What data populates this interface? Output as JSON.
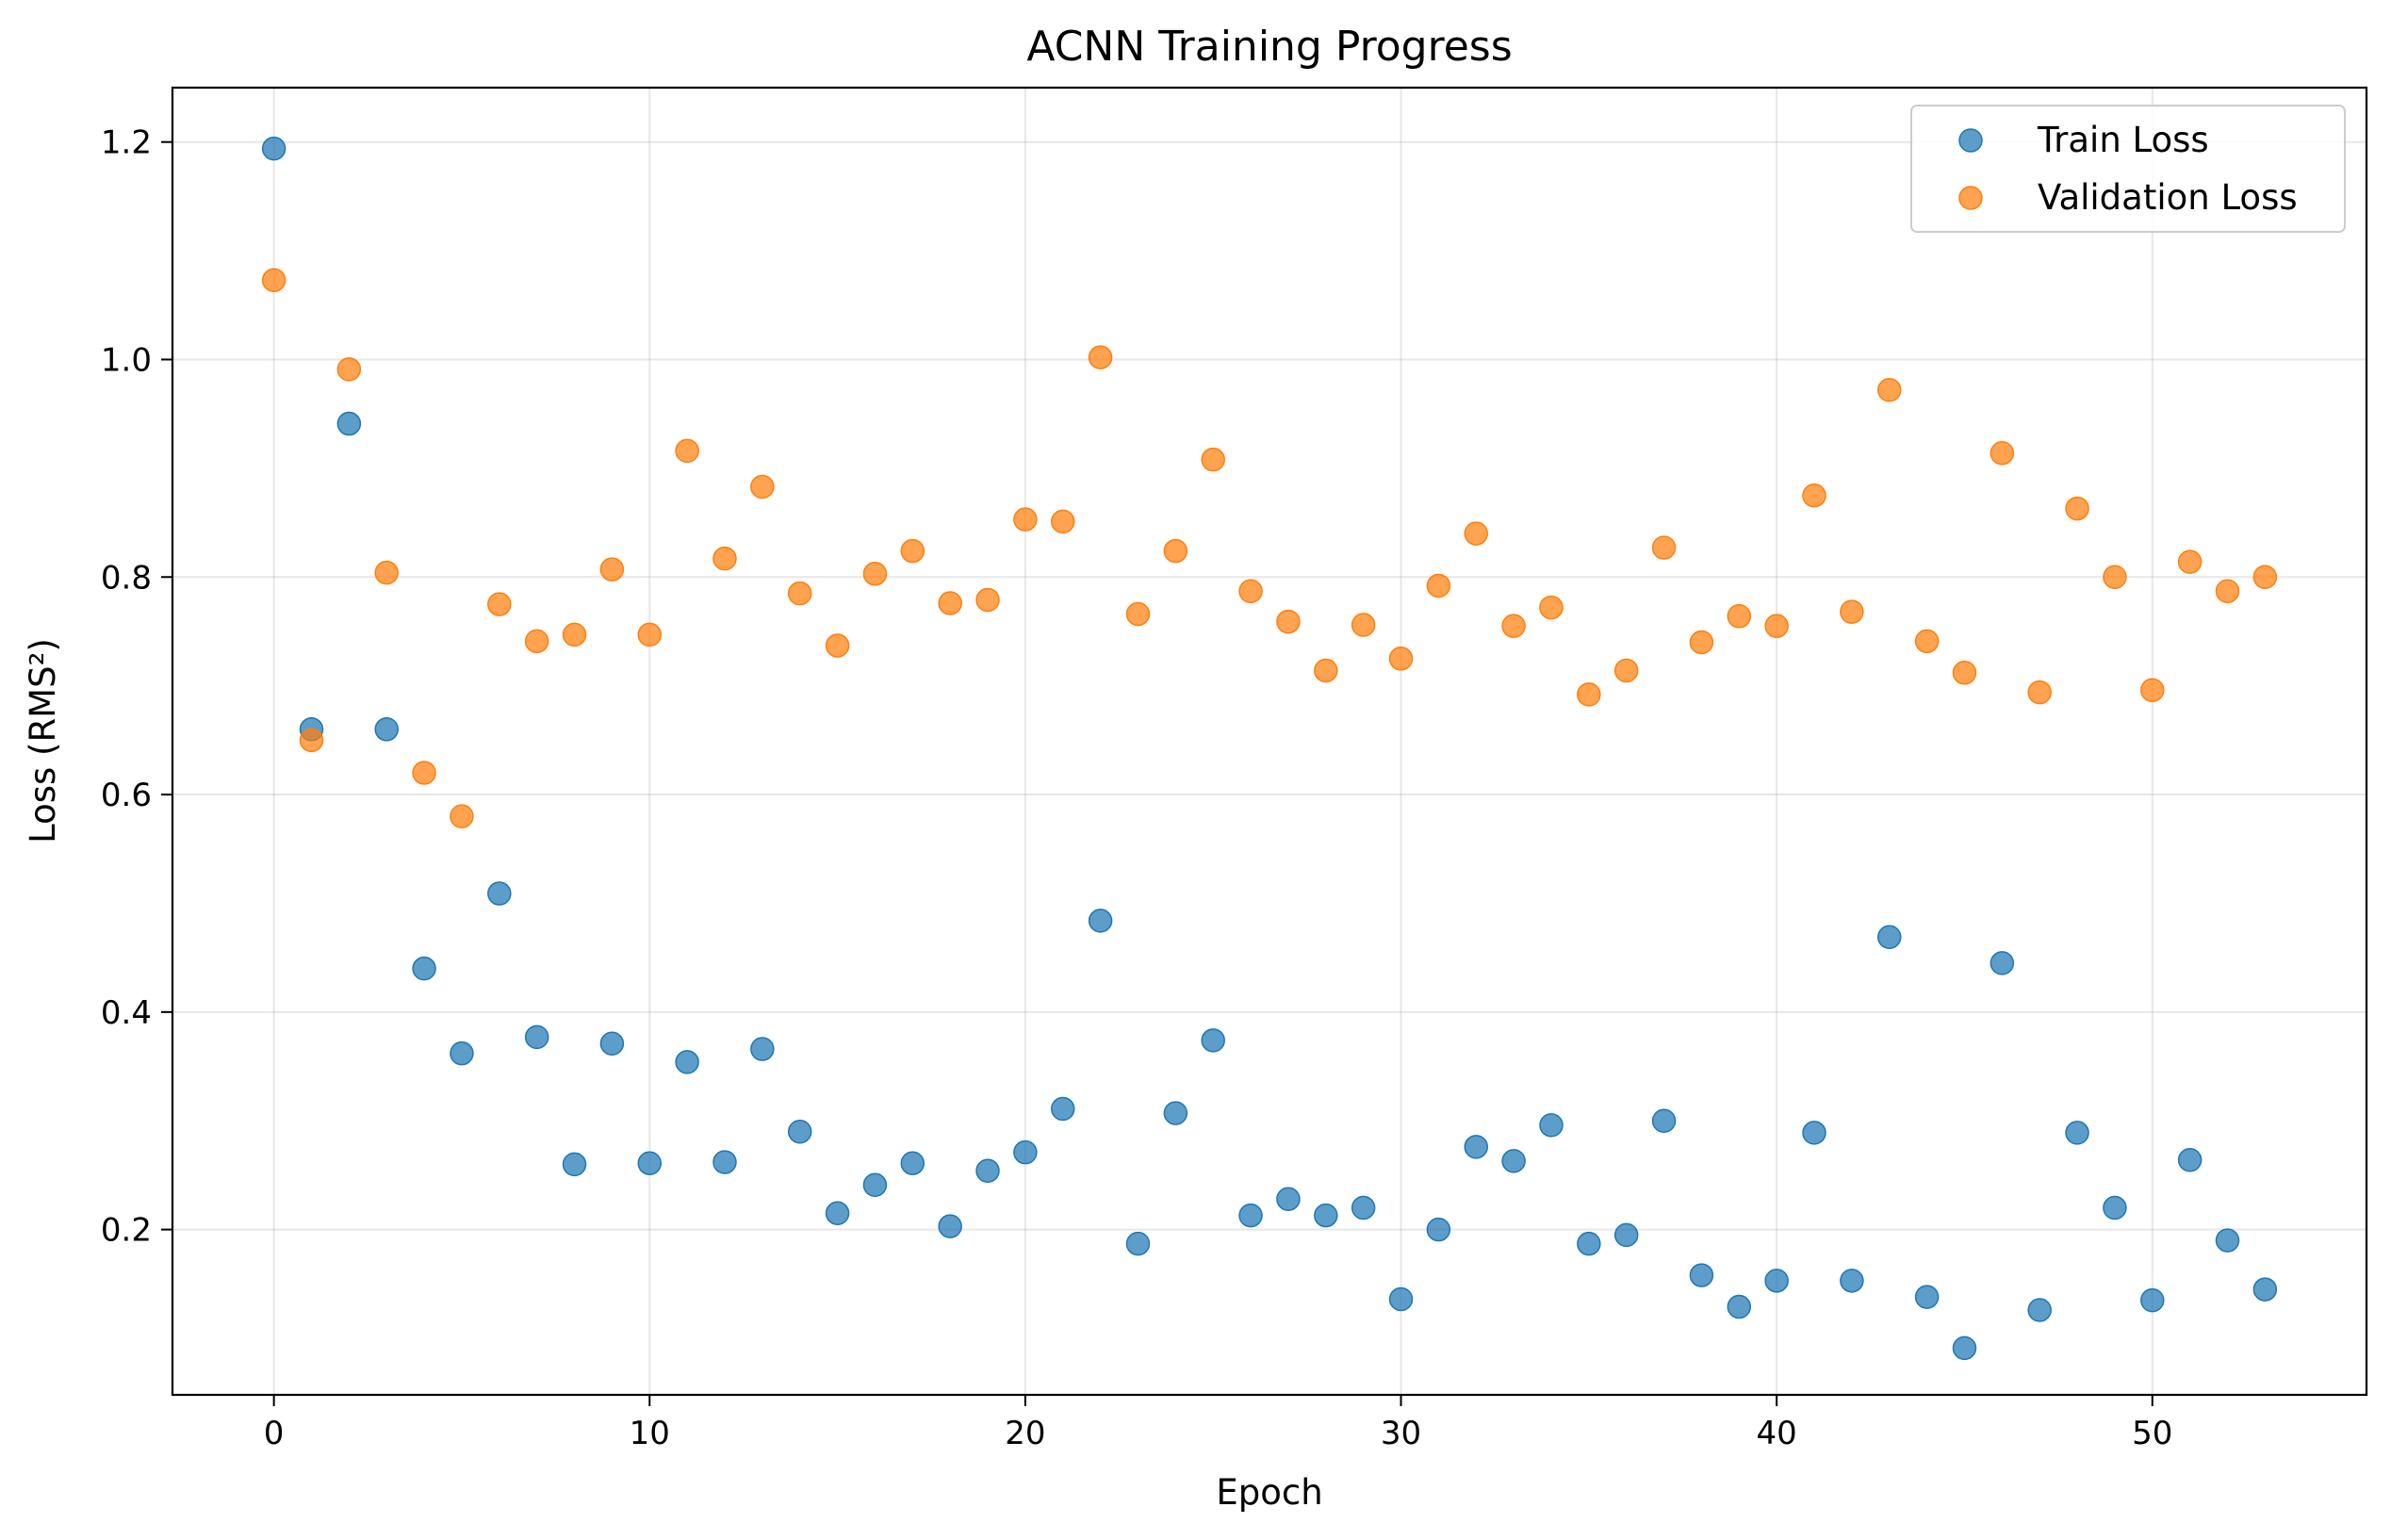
{
  "chart_data": {
    "type": "scatter",
    "title": "ACNN Training Progress",
    "xlabel": "Epoch",
    "ylabel": "Loss (RMS²)",
    "xlim": [
      -2.7,
      55.7
    ],
    "ylim": [
      0.048,
      1.25
    ],
    "xticks": [
      0,
      10,
      20,
      30,
      40,
      50
    ],
    "yticks": [
      0.2,
      0.4,
      0.6,
      0.8,
      1.0,
      1.2
    ],
    "xtick_labels": [
      "0",
      "10",
      "20",
      "30",
      "40",
      "50"
    ],
    "ytick_labels": [
      "0.2",
      "0.4",
      "0.6",
      "0.8",
      "1.0",
      "1.2"
    ],
    "grid": true,
    "legend_position": "top-right",
    "x": [
      0,
      1,
      2,
      3,
      4,
      5,
      6,
      7,
      8,
      9,
      10,
      11,
      12,
      13,
      14,
      15,
      16,
      17,
      18,
      19,
      20,
      21,
      22,
      23,
      24,
      25,
      26,
      27,
      28,
      29,
      30,
      31,
      32,
      33,
      34,
      35,
      36,
      37,
      38,
      39,
      40,
      41,
      42,
      43,
      44,
      45,
      46,
      47,
      48,
      49,
      50,
      51,
      52,
      53
    ],
    "series": [
      {
        "name": "Train Loss",
        "color": "#1f77b4",
        "values": [
          1.194,
          0.66,
          0.941,
          0.66,
          0.44,
          0.362,
          0.509,
          0.377,
          0.26,
          0.371,
          0.261,
          0.354,
          0.262,
          0.366,
          0.29,
          0.215,
          0.241,
          0.261,
          0.203,
          0.254,
          0.271,
          0.311,
          0.484,
          0.187,
          0.307,
          0.374,
          0.213,
          0.228,
          0.213,
          0.22,
          0.136,
          0.2,
          0.276,
          0.263,
          0.296,
          0.187,
          0.195,
          0.3,
          0.158,
          0.129,
          0.153,
          0.289,
          0.153,
          0.469,
          0.138,
          0.091,
          0.445,
          0.126,
          0.289,
          0.22,
          0.135,
          0.264,
          0.19,
          0.145
        ]
      },
      {
        "name": "Validation Loss",
        "color": "#ff7f0e",
        "values": [
          1.073,
          0.65,
          0.991,
          0.804,
          0.62,
          0.58,
          0.775,
          0.741,
          0.747,
          0.807,
          0.747,
          0.916,
          0.817,
          0.883,
          0.785,
          0.737,
          0.803,
          0.824,
          0.776,
          0.779,
          0.853,
          0.851,
          1.002,
          0.766,
          0.824,
          0.908,
          0.787,
          0.759,
          0.714,
          0.756,
          0.725,
          0.792,
          0.84,
          0.755,
          0.772,
          0.692,
          0.714,
          0.827,
          0.74,
          0.764,
          0.755,
          0.875,
          0.768,
          0.972,
          0.741,
          0.712,
          0.914,
          0.694,
          0.863,
          0.8,
          0.696,
          0.814,
          0.787,
          0.8
        ]
      }
    ]
  }
}
